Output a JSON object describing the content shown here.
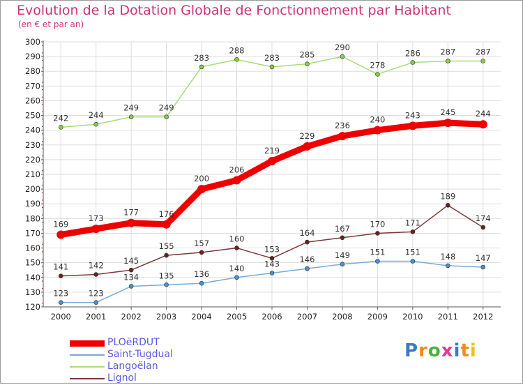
{
  "header": {
    "title": "Evolution de la Dotation Globale de Fonctionnement par Habitant",
    "subtitle": "(en € et par an)"
  },
  "logo": {
    "text": "Proxiti",
    "colors": [
      "#3a7ac8",
      "#f08a1c",
      "#4caf3a",
      "#e83a8a",
      "#3a7ac8",
      "#f08a1c",
      "#e8c020"
    ]
  },
  "chart_data": {
    "type": "line",
    "title": "Evolution de la Dotation Globale de Fonctionnement par Habitant",
    "subtitle": "(en € et par an)",
    "xlabel": "",
    "ylabel": "",
    "x": [
      "2000",
      "2001",
      "2002",
      "2003",
      "2004",
      "2005",
      "2006",
      "2007",
      "2008",
      "2009",
      "2010",
      "2011",
      "2012"
    ],
    "ylim": [
      120,
      300
    ],
    "yticks": [
      120,
      130,
      140,
      150,
      160,
      170,
      180,
      190,
      200,
      210,
      220,
      230,
      240,
      250,
      260,
      270,
      280,
      290,
      300
    ],
    "grid": true,
    "legend_position": "bottom-left",
    "series": [
      {
        "name": "Langoëlan",
        "color": "#a6dd77",
        "point_color": "#88cc44",
        "emphasis": false,
        "values": [
          242,
          244,
          249,
          249,
          283,
          288,
          283,
          285,
          290,
          278,
          286,
          287,
          287
        ]
      },
      {
        "name": "Lignol",
        "color": "#7a3a3a",
        "point_color": "#6a2020",
        "emphasis": false,
        "values": [
          141,
          142,
          145,
          155,
          157,
          160,
          153,
          164,
          167,
          170,
          171,
          189,
          174
        ]
      },
      {
        "name": "Saint-Tugdual",
        "color": "#7aaad6",
        "point_color": "#4a90d0",
        "emphasis": false,
        "values": [
          123,
          123,
          134,
          135,
          136,
          140,
          143,
          146,
          149,
          151,
          151,
          148,
          147
        ]
      },
      {
        "name": "PLOëRDUT",
        "color": "#ee0000",
        "point_color": "#ee0000",
        "emphasis": true,
        "values": [
          169,
          173,
          177,
          176,
          200,
          206,
          219,
          229,
          236,
          240,
          243,
          245,
          244
        ]
      }
    ],
    "legend_order": [
      "PLOëRDUT",
      "Saint-Tugdual",
      "Langoëlan",
      "Lignol"
    ]
  }
}
